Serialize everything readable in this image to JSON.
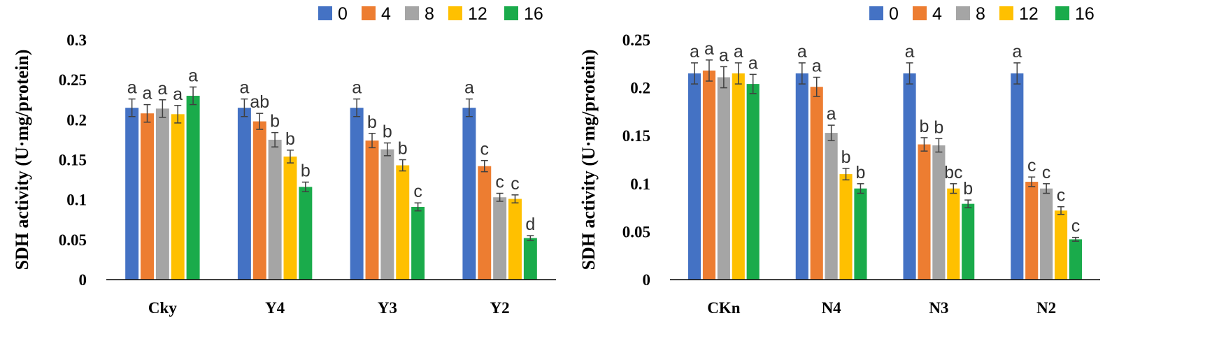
{
  "colors": {
    "series": [
      "#4472C4",
      "#ED7D31",
      "#A5A5A5",
      "#FFC000",
      "#1AAB4B"
    ],
    "axis": "#000000",
    "error_bar": "#404040"
  },
  "chart_data": [
    {
      "type": "bar",
      "title": "",
      "xlabel": "",
      "ylabel": "SDH activity (U·mg/protein)",
      "ylim": [
        0,
        0.3
      ],
      "yticks": [
        0,
        0.05,
        0.1,
        0.15,
        0.2,
        0.25,
        0.3
      ],
      "ytick_labels": [
        "0",
        "0.05",
        "0.1",
        "0.15",
        "0.2",
        "0.25",
        "0.3"
      ],
      "grid": false,
      "legend_position": "top-right",
      "categories": [
        "Cky",
        "Y4",
        "Y3",
        "Y2"
      ],
      "series": [
        {
          "name": "0",
          "values": [
            0.215,
            0.215,
            0.215,
            0.215
          ],
          "errors": [
            0.011,
            0.011,
            0.011,
            0.011
          ],
          "labels": [
            "a",
            "a",
            "a",
            "a"
          ]
        },
        {
          "name": "4",
          "values": [
            0.208,
            0.198,
            0.174,
            0.142
          ],
          "errors": [
            0.011,
            0.01,
            0.009,
            0.007
          ],
          "labels": [
            "a",
            "ab",
            "b",
            "c"
          ]
        },
        {
          "name": "8",
          "values": [
            0.214,
            0.175,
            0.163,
            0.103
          ],
          "errors": [
            0.011,
            0.009,
            0.008,
            0.005
          ],
          "labels": [
            "a",
            "b",
            "b",
            "c"
          ]
        },
        {
          "name": "12",
          "values": [
            0.207,
            0.154,
            0.143,
            0.101
          ],
          "errors": [
            0.011,
            0.008,
            0.007,
            0.005
          ],
          "labels": [
            "a",
            "b",
            "b",
            "c"
          ]
        },
        {
          "name": "16",
          "values": [
            0.23,
            0.116,
            0.091,
            0.052
          ],
          "errors": [
            0.011,
            0.006,
            0.005,
            0.003
          ],
          "labels": [
            "a",
            "b",
            "c",
            "d"
          ]
        }
      ]
    },
    {
      "type": "bar",
      "title": "",
      "xlabel": "",
      "ylabel": "SDH activity (U·mg/protein)",
      "ylim": [
        0,
        0.25
      ],
      "yticks": [
        0,
        0.05,
        0.1,
        0.15,
        0.2,
        0.25
      ],
      "ytick_labels": [
        "0",
        "0.05",
        "0.1",
        "0.15",
        "0.2",
        "0.25"
      ],
      "grid": false,
      "legend_position": "top-right",
      "categories": [
        "CKn",
        "N4",
        "N3",
        "N2"
      ],
      "series": [
        {
          "name": "0",
          "values": [
            0.215,
            0.215,
            0.215,
            0.215
          ],
          "errors": [
            0.011,
            0.011,
            0.011,
            0.011
          ],
          "labels": [
            "a",
            "a",
            "a",
            "a"
          ]
        },
        {
          "name": "4",
          "values": [
            0.218,
            0.201,
            0.141,
            0.102
          ],
          "errors": [
            0.011,
            0.01,
            0.007,
            0.005
          ],
          "labels": [
            "a",
            "a",
            "b",
            "c"
          ]
        },
        {
          "name": "8",
          "values": [
            0.211,
            0.153,
            0.14,
            0.095
          ],
          "errors": [
            0.011,
            0.008,
            0.007,
            0.005
          ],
          "labels": [
            "a",
            "a",
            "b",
            "c"
          ]
        },
        {
          "name": "12",
          "values": [
            0.215,
            0.11,
            0.095,
            0.072
          ],
          "errors": [
            0.011,
            0.006,
            0.005,
            0.004
          ],
          "labels": [
            "a",
            "b",
            "bc",
            "c"
          ]
        },
        {
          "name": "16",
          "values": [
            0.204,
            0.095,
            0.079,
            0.042
          ],
          "errors": [
            0.01,
            0.005,
            0.004,
            0.002
          ],
          "labels": [
            "a",
            "b",
            "b",
            "c"
          ]
        }
      ]
    }
  ]
}
